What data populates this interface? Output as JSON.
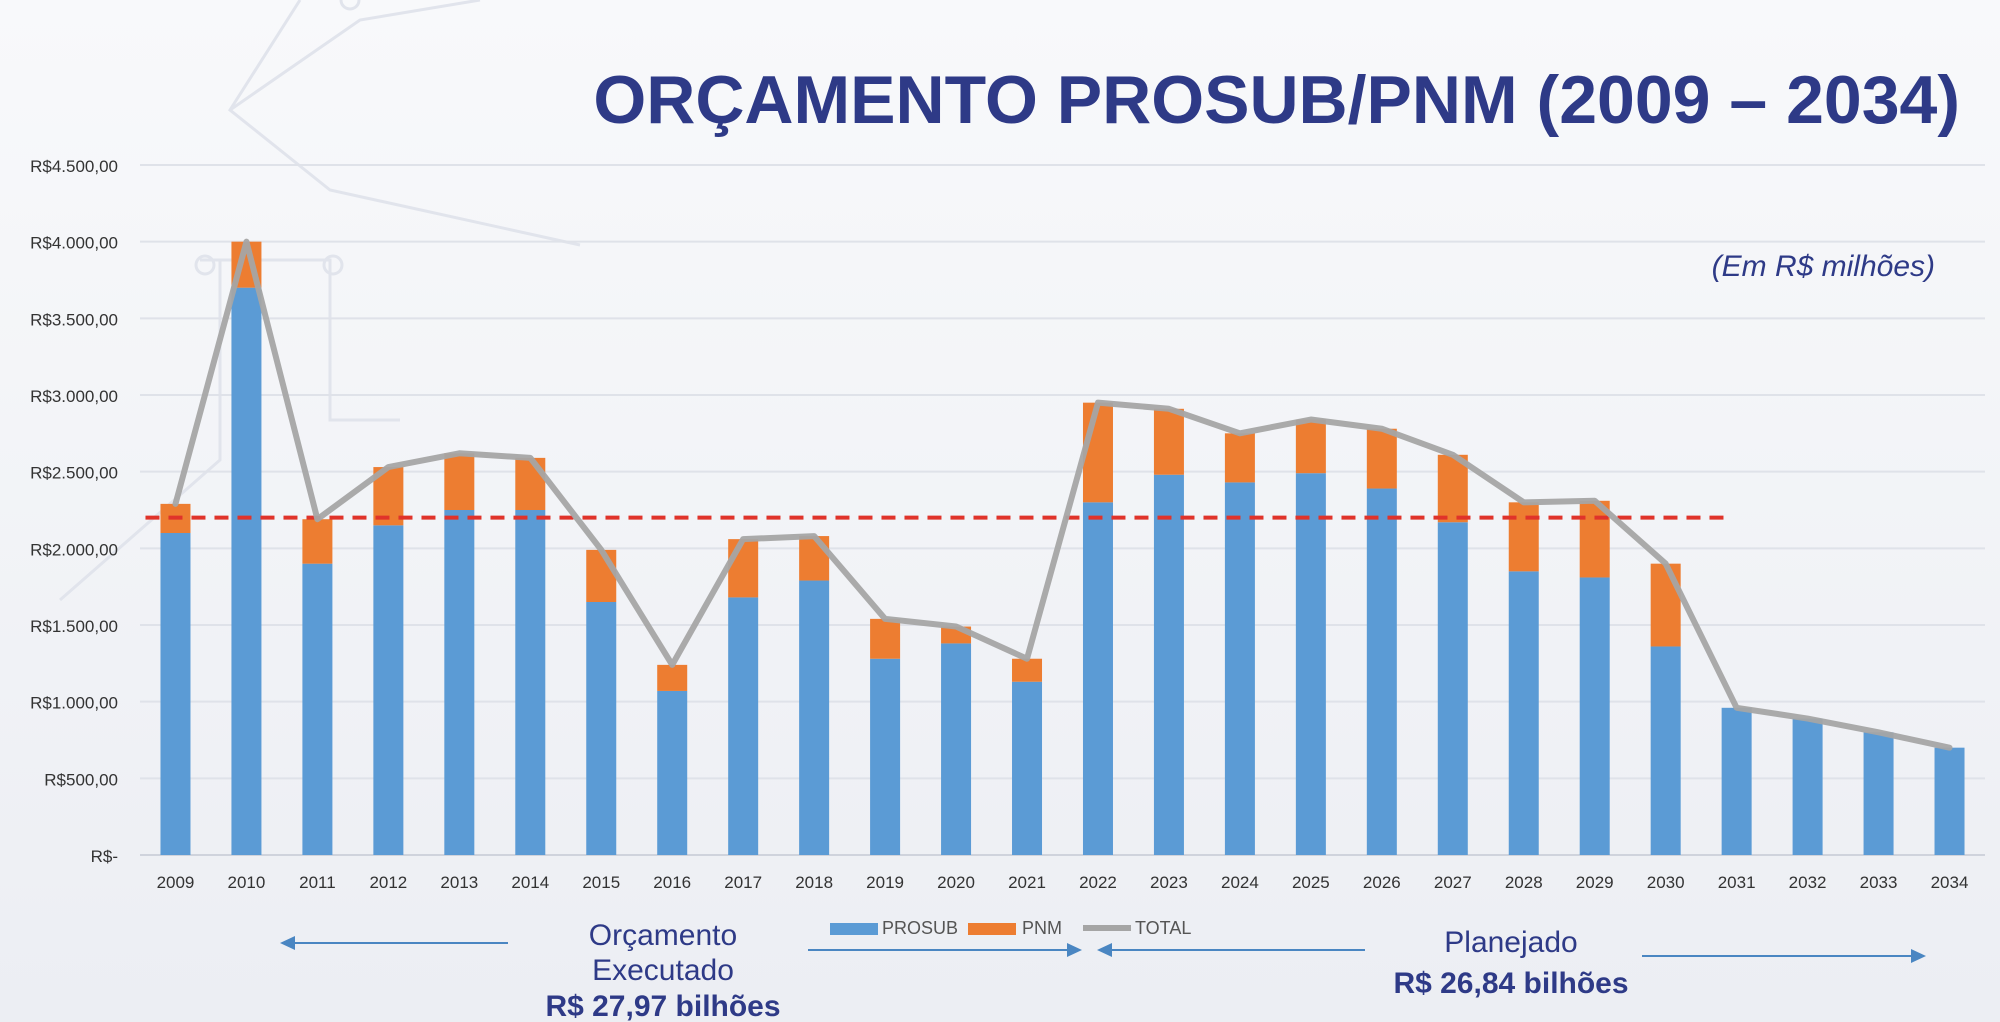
{
  "chart_data": {
    "type": "bar",
    "title": "ORÇAMENTO PROSUB/PNM (2009 – 2034)",
    "unit_note": "(Em R$ milhões)",
    "categories": [
      "2009",
      "2010",
      "2011",
      "2012",
      "2013",
      "2014",
      "2015",
      "2016",
      "2017",
      "2018",
      "2019",
      "2020",
      "2021",
      "2022",
      "2023",
      "2024",
      "2025",
      "2026",
      "2027",
      "2028",
      "2029",
      "2030",
      "2031",
      "2032",
      "2033",
      "2034"
    ],
    "series": [
      {
        "name": "PROSUB",
        "values": [
          2100,
          3700,
          1900,
          2150,
          2250,
          2250,
          1650,
          1070,
          1680,
          1790,
          1280,
          1380,
          1130,
          2300,
          2480,
          2430,
          2490,
          2390,
          2170,
          1850,
          1810,
          1360,
          960,
          890,
          800,
          700
        ]
      },
      {
        "name": "PNM",
        "values": [
          190,
          300,
          290,
          380,
          370,
          340,
          340,
          170,
          380,
          290,
          260,
          110,
          150,
          650,
          430,
          320,
          350,
          390,
          440,
          450,
          500,
          540,
          0,
          0,
          0,
          0
        ]
      },
      {
        "name": "TOTAL",
        "values": [
          2290,
          4000,
          2190,
          2530,
          2620,
          2590,
          1990,
          1240,
          2060,
          2080,
          1540,
          1490,
          1280,
          2950,
          2910,
          2750,
          2840,
          2780,
          2610,
          2300,
          2310,
          1900,
          960,
          890,
          800,
          700
        ]
      }
    ],
    "ylim": [
      0,
      4500
    ],
    "y_ticks": [
      {
        "value": 0,
        "label": "R$-"
      },
      {
        "value": 500,
        "label": "R$500,00"
      },
      {
        "value": 1000,
        "label": "R$1.000,00"
      },
      {
        "value": 1500,
        "label": "R$1.500,00"
      },
      {
        "value": 2000,
        "label": "R$2.000,00"
      },
      {
        "value": 2500,
        "label": "R$2.500,00"
      },
      {
        "value": 3000,
        "label": "R$3.000,00"
      },
      {
        "value": 3500,
        "label": "R$3.500,00"
      },
      {
        "value": 4000,
        "label": "R$4.000,00"
      },
      {
        "value": 4500,
        "label": "R$4.500,00"
      }
    ],
    "reference_line": {
      "value": 2200,
      "from": "2009",
      "to": "2030"
    },
    "grid": true,
    "legend_position": "bottom-center",
    "colors": {
      "PROSUB": "#5b9bd5",
      "PNM": "#ed7d31",
      "TOTAL": "#a5a5a5",
      "reference": "#e0332a",
      "title": "#2e3a87",
      "arrow": "#4a86c2"
    },
    "annotations": {
      "executed_label_1": "Orçamento",
      "executed_label_2": "Executado",
      "executed_value": "R$ 27,97 bilhões",
      "planned_label": "Planejado",
      "planned_value": "R$ 26,84 bilhões"
    }
  }
}
